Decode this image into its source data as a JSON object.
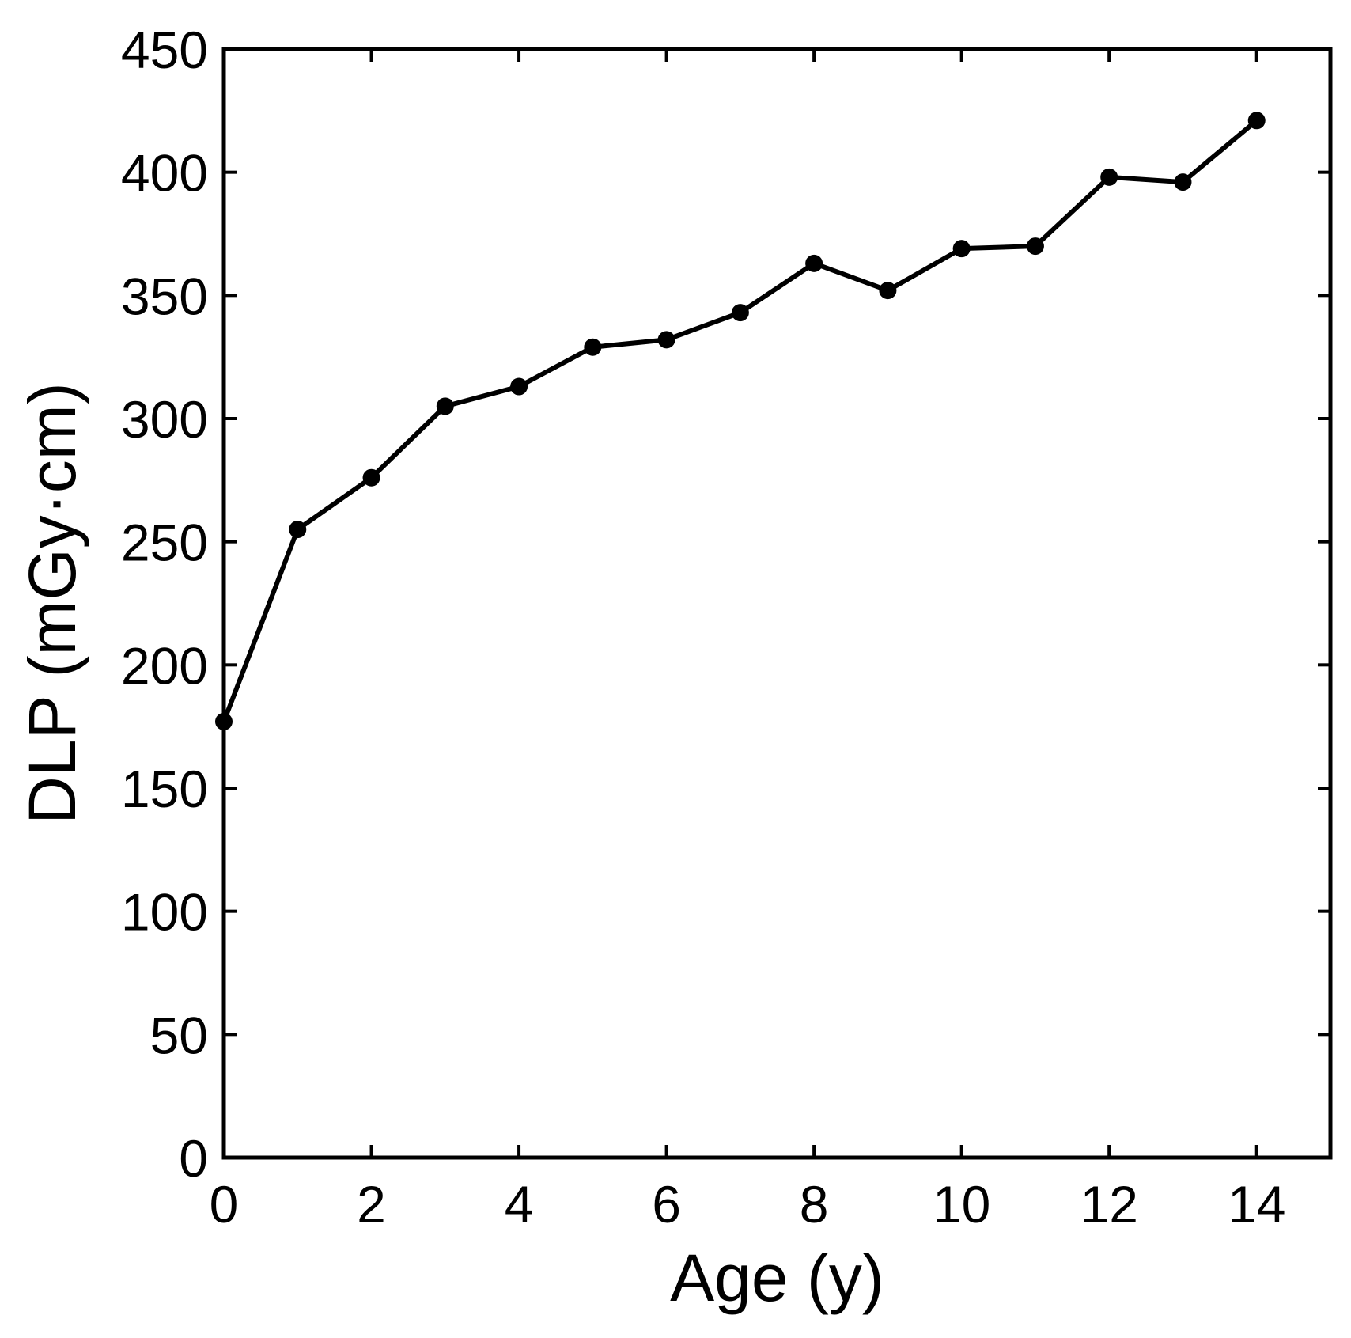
{
  "chart_data": {
    "type": "line",
    "xlabel": "Age (y)",
    "ylabel": "DLP (mGy·cm)",
    "xlim": [
      0,
      15
    ],
    "ylim": [
      0,
      450
    ],
    "x_ticks": [
      0,
      2,
      4,
      6,
      8,
      10,
      12,
      14
    ],
    "y_ticks": [
      0,
      50,
      100,
      150,
      200,
      250,
      300,
      350,
      400,
      450
    ],
    "x_tick_labels": [
      "0",
      "2",
      "4",
      "6",
      "8",
      "10",
      "12",
      "14"
    ],
    "y_tick_labels": [
      "0",
      "50",
      "100",
      "150",
      "200",
      "250",
      "300",
      "350",
      "400",
      "450"
    ],
    "grid": false,
    "series": [
      {
        "color": "#000000",
        "marker": "circle",
        "x": [
          0,
          1,
          2,
          3,
          4,
          5,
          6,
          7,
          8,
          9,
          10,
          11,
          12,
          13,
          14
        ],
        "y": [
          177,
          255,
          276,
          305,
          313,
          329,
          332,
          343,
          363,
          352,
          369,
          370,
          398,
          396,
          421
        ]
      }
    ]
  }
}
